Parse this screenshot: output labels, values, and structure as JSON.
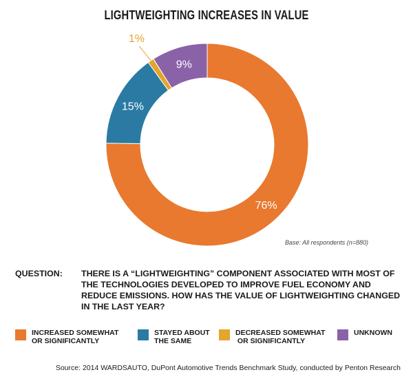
{
  "chart_data": {
    "type": "pie",
    "title": "LIGHTWEIGHTING INCREASES IN VALUE",
    "categories": [
      "INCREASED SOMEWHAT\nOR SIGNIFICANTLY",
      "STAYED ABOUT\nTHE SAME",
      "DECREASED SOMEWHAT\n OR SIGNIFICANTLY",
      "UNKNOWN"
    ],
    "values": [
      76,
      15,
      1,
      9
    ],
    "value_labels": [
      "76%",
      "15%",
      "1%",
      "9%"
    ],
    "colors": [
      "#e8792e",
      "#2a7aa4",
      "#e3a52a",
      "#8a62a8"
    ],
    "donut": true,
    "legend_position": "bottom"
  },
  "base_note": "Base: All respondents (n=880)",
  "question": {
    "label": "QUESTION:",
    "text": "THERE IS A “LIGHTWEIGHTING” COMPONENT ASSOCIATED WITH MOST OF THE TECHNOLOGIES DEVELOPED TO IMPROVE FUEL ECONOMY AND REDUCE EMISSIONS.  HOW HAS THE VALUE OF LIGHTWEIGHTING CHANGED IN THE LAST YEAR?"
  },
  "source": "Source: 2014 WARDSAUTO, DuPont Automotive Trends Benchmark Study, conducted by Penton Research"
}
